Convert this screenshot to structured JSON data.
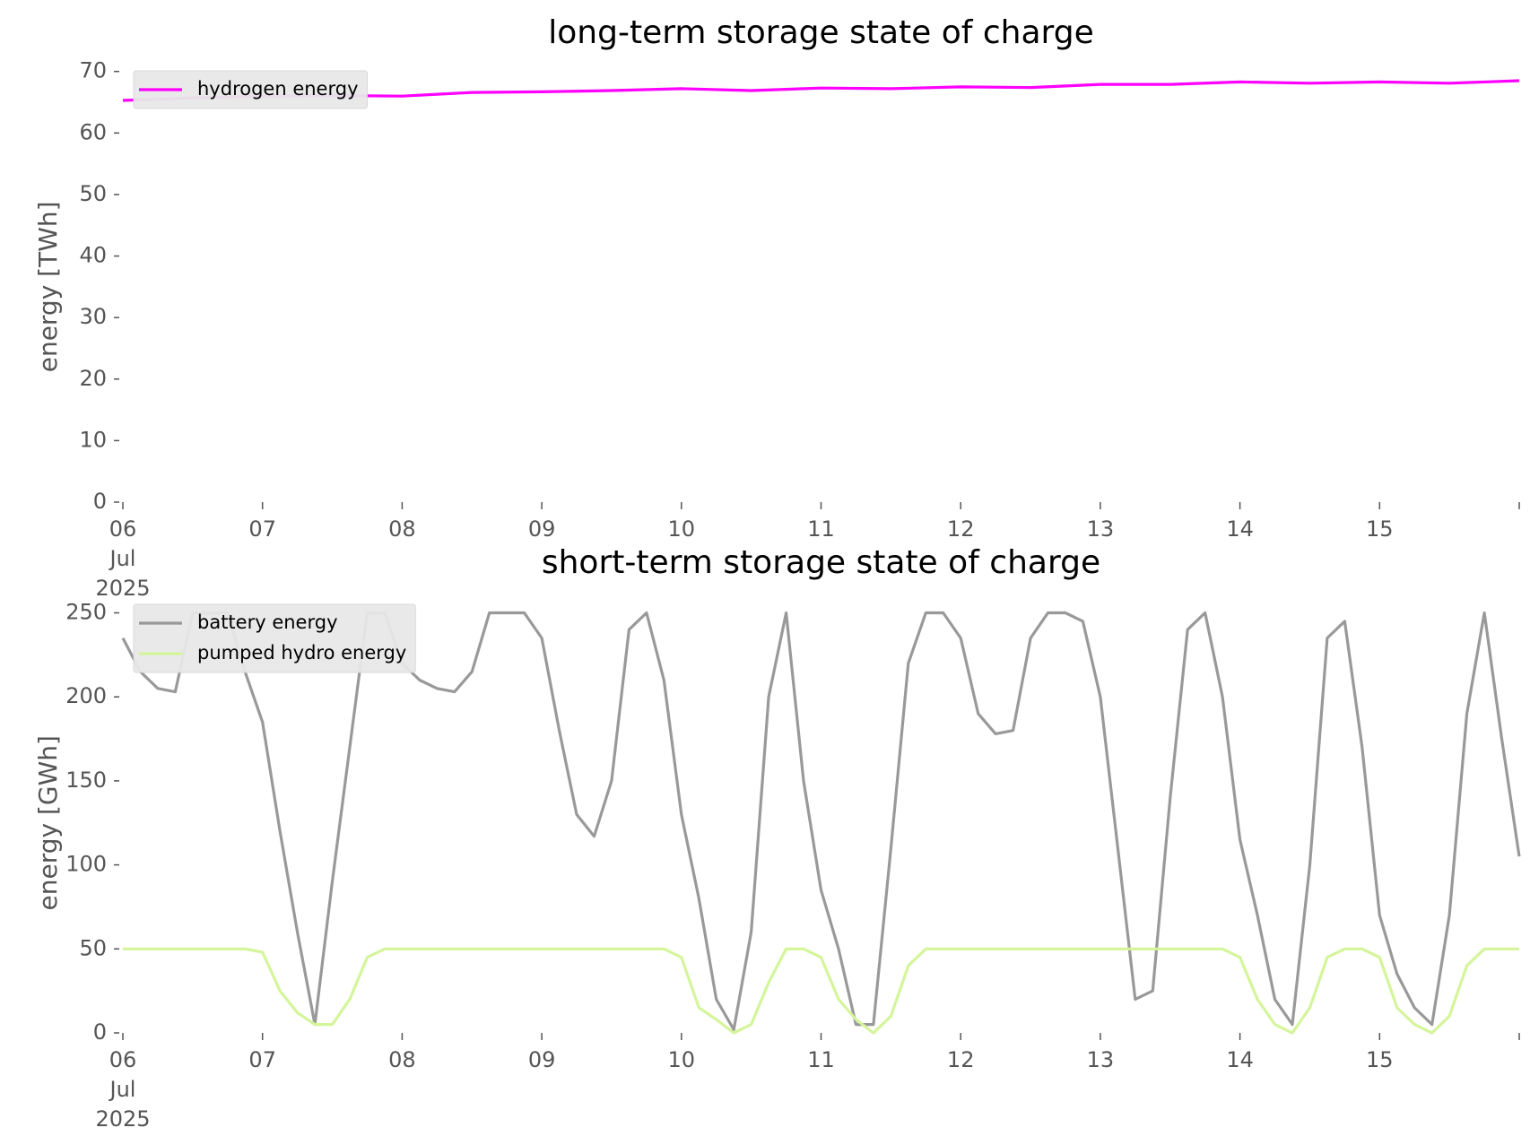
{
  "chart_data": [
    {
      "type": "line",
      "title": "long-term storage state of charge",
      "ylabel": "energy [TWh]",
      "x": [
        0,
        0.5,
        1,
        1.5,
        2,
        2.5,
        3,
        3.5,
        4,
        4.5,
        5,
        5.5,
        6,
        6.5,
        7,
        7.5,
        8,
        8.5,
        9,
        9.5,
        10
      ],
      "series": [
        {
          "name": "hydrogen energy",
          "color": "#ff00ff",
          "values": [
            65.3,
            65.7,
            66.0,
            66.1,
            66.0,
            66.6,
            66.7,
            66.9,
            67.2,
            66.9,
            67.3,
            67.2,
            67.5,
            67.4,
            67.9,
            67.9,
            68.3,
            68.1,
            68.3,
            68.1,
            68.5
          ]
        }
      ],
      "xlim": [
        0,
        10
      ],
      "ylim": [
        0,
        72
      ],
      "yticks": [
        0,
        10,
        20,
        30,
        40,
        50,
        60,
        70
      ],
      "xticks": [
        {
          "value": 0,
          "label": "06\nJul\n2025"
        },
        {
          "value": 1,
          "label": "07"
        },
        {
          "value": 2,
          "label": "08"
        },
        {
          "value": 3,
          "label": "09"
        },
        {
          "value": 4,
          "label": "10"
        },
        {
          "value": 5,
          "label": "11"
        },
        {
          "value": 6,
          "label": "12"
        },
        {
          "value": 7,
          "label": "13"
        },
        {
          "value": 8,
          "label": "14"
        },
        {
          "value": 9,
          "label": "15"
        },
        {
          "value": 10,
          "label": null
        }
      ],
      "legend": "upper left"
    },
    {
      "type": "line",
      "title": "short-term storage state of charge",
      "ylabel": "energy [GWh]",
      "x": [
        0,
        0.125,
        0.25,
        0.375,
        0.5,
        0.625,
        0.75,
        0.875,
        1,
        1.125,
        1.25,
        1.375,
        1.5,
        1.625,
        1.75,
        1.875,
        2,
        2.125,
        2.25,
        2.375,
        2.5,
        2.625,
        2.75,
        2.875,
        3,
        3.125,
        3.25,
        3.375,
        3.5,
        3.625,
        3.75,
        3.875,
        4,
        4.125,
        4.25,
        4.375,
        4.5,
        4.625,
        4.75,
        4.875,
        5,
        5.125,
        5.25,
        5.375,
        5.5,
        5.625,
        5.75,
        5.875,
        6,
        6.125,
        6.25,
        6.375,
        6.5,
        6.625,
        6.75,
        6.875,
        7,
        7.125,
        7.25,
        7.375,
        7.5,
        7.625,
        7.75,
        7.875,
        8,
        8.125,
        8.25,
        8.375,
        8.5,
        8.625,
        8.75,
        8.875,
        9,
        9.125,
        9.25,
        9.375,
        9.5,
        9.625,
        9.75,
        9.875,
        10
      ],
      "series": [
        {
          "name": "battery energy",
          "color": "#999999",
          "values": [
            235,
            215,
            205,
            203,
            250,
            250,
            250,
            215,
            185,
            120,
            60,
            5,
            90,
            170,
            250,
            250,
            220,
            210,
            205,
            203,
            215,
            250,
            250,
            250,
            235,
            180,
            130,
            117,
            150,
            240,
            250,
            210,
            130,
            80,
            20,
            2,
            60,
            200,
            250,
            150,
            85,
            50,
            5,
            5,
            110,
            220,
            250,
            250,
            235,
            190,
            178,
            180,
            235,
            250,
            250,
            245,
            200,
            110,
            20,
            25,
            140,
            240,
            250,
            200,
            115,
            70,
            20,
            5,
            100,
            235,
            245,
            170,
            70,
            35,
            15,
            5,
            70,
            190,
            250,
            175,
            105
          ]
        },
        {
          "name": "pumped hydro energy",
          "color": "#d4f59a",
          "values": [
            50,
            50,
            50,
            50,
            50,
            50,
            50,
            50,
            48,
            25,
            12,
            5,
            5,
            20,
            45,
            50,
            50,
            50,
            50,
            50,
            50,
            50,
            50,
            50,
            50,
            50,
            50,
            50,
            50,
            50,
            50,
            50,
            45,
            15,
            8,
            0,
            5,
            30,
            50,
            50,
            45,
            20,
            8,
            0,
            10,
            40,
            50,
            50,
            50,
            50,
            50,
            50,
            50,
            50,
            50,
            50,
            50,
            50,
            50,
            50,
            50,
            50,
            50,
            50,
            45,
            20,
            5,
            0,
            15,
            45,
            50,
            50,
            45,
            15,
            5,
            0,
            10,
            40,
            50,
            50,
            50
          ]
        }
      ],
      "xlim": [
        0,
        10
      ],
      "ylim": [
        0,
        262
      ],
      "yticks": [
        0,
        50,
        100,
        150,
        200,
        250
      ],
      "xticks": [
        {
          "value": 0,
          "label": "06\nJul\n2025"
        },
        {
          "value": 1,
          "label": "07"
        },
        {
          "value": 2,
          "label": "08"
        },
        {
          "value": 3,
          "label": "09"
        },
        {
          "value": 4,
          "label": "10"
        },
        {
          "value": 5,
          "label": "11"
        },
        {
          "value": 6,
          "label": "12"
        },
        {
          "value": 7,
          "label": "13"
        },
        {
          "value": 8,
          "label": "14"
        },
        {
          "value": 9,
          "label": "15"
        },
        {
          "value": 10,
          "label": null
        }
      ],
      "legend": "upper left"
    }
  ]
}
